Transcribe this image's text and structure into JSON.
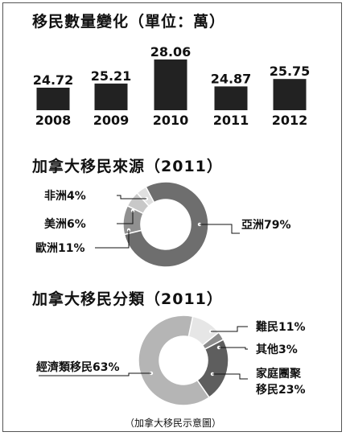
{
  "chart_data": [
    {
      "type": "bar",
      "title": "移民數量變化（單位：萬）",
      "categories": [
        "2008",
        "2009",
        "2010",
        "2011",
        "2012"
      ],
      "values": [
        24.72,
        25.21,
        28.06,
        24.87,
        25.75
      ],
      "value_labels": [
        "24.72",
        "25.21",
        "28.06",
        "24.87",
        "25.75"
      ],
      "bar_color": "#222222"
    },
    {
      "type": "pie",
      "title": "加拿大移民來源（2011）",
      "labels": [
        "亞洲79%",
        "非洲4%",
        "美洲6%",
        "歐洲11%"
      ],
      "values": [
        79,
        4,
        6,
        11
      ],
      "colors": [
        "#6e6e6e",
        "#e0e0e0",
        "#c8c8c8",
        "#909090"
      ]
    },
    {
      "type": "pie",
      "title": "加拿大移民分類（2011）",
      "labels": [
        "難民11%",
        "其他3%",
        "家庭團聚移民23%",
        "經濟類移民63%"
      ],
      "values": [
        11,
        3,
        23,
        63
      ],
      "colors": [
        "#e6e6e6",
        "#8c8c8c",
        "#5e5e5e",
        "#b5b5b5"
      ]
    }
  ],
  "footer_note": "（加拿大移民示意圖）"
}
